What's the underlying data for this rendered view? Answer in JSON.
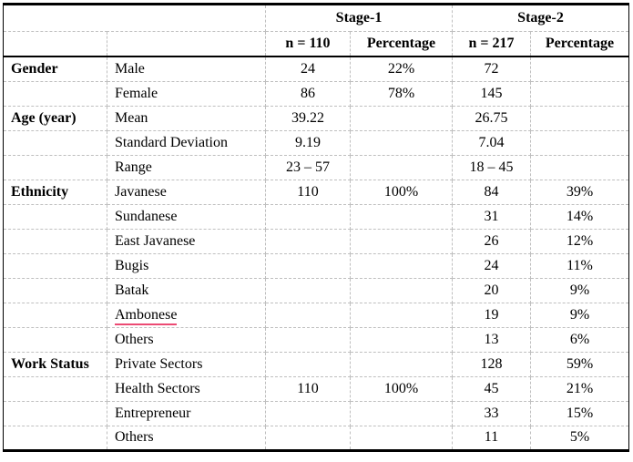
{
  "table": {
    "header": {
      "corner_blank": "",
      "stage1": "Stage-1",
      "stage2": "Stage-2",
      "blank_col1": "",
      "blank_col2": "",
      "stage1_n": "n = 110",
      "stage1_pct": "Percentage",
      "stage2_n": "n = 217",
      "stage2_pct": "Percentage"
    },
    "rows": [
      {
        "category": "Gender",
        "label": "Male",
        "stage1_n": "24",
        "stage1_pct": "22%",
        "stage2_n": "72",
        "stage2_pct": ""
      },
      {
        "category": "",
        "label": "Female",
        "stage1_n": "86",
        "stage1_pct": "78%",
        "stage2_n": "145",
        "stage2_pct": ""
      },
      {
        "category": "Age (year)",
        "label": "Mean",
        "stage1_n": "39.22",
        "stage1_pct": "",
        "stage2_n": "26.75",
        "stage2_pct": ""
      },
      {
        "category": "",
        "label": "Standard Deviation",
        "stage1_n": "9.19",
        "stage1_pct": "",
        "stage2_n": "7.04",
        "stage2_pct": ""
      },
      {
        "category": "",
        "label": "Range",
        "stage1_n": "23 – 57",
        "stage1_pct": "",
        "stage2_n": "18 – 45",
        "stage2_pct": ""
      },
      {
        "category": "Ethnicity",
        "label": "Javanese",
        "stage1_n": "110",
        "stage1_pct": "100%",
        "stage2_n": "84",
        "stage2_pct": "39%"
      },
      {
        "category": "",
        "label": "Sundanese",
        "stage1_n": "",
        "stage1_pct": "",
        "stage2_n": "31",
        "stage2_pct": "14%"
      },
      {
        "category": "",
        "label": "East Javanese",
        "stage1_n": "",
        "stage1_pct": "",
        "stage2_n": "26",
        "stage2_pct": "12%"
      },
      {
        "category": "",
        "label": "Bugis",
        "stage1_n": "",
        "stage1_pct": "",
        "stage2_n": "24",
        "stage2_pct": "11%"
      },
      {
        "category": "",
        "label": "Batak",
        "stage1_n": "",
        "stage1_pct": "",
        "stage2_n": "20",
        "stage2_pct": "9%"
      },
      {
        "category": "",
        "label": "Ambonese",
        "underlined": true,
        "stage1_n": "",
        "stage1_pct": "",
        "stage2_n": "19",
        "stage2_pct": "9%"
      },
      {
        "category": "",
        "label": "Others",
        "stage1_n": "",
        "stage1_pct": "",
        "stage2_n": "13",
        "stage2_pct": "6%"
      },
      {
        "category": "Work Status",
        "label": "Private Sectors",
        "stage1_n": "",
        "stage1_pct": "",
        "stage2_n": "128",
        "stage2_pct": "59%"
      },
      {
        "category": "",
        "label": "Health Sectors",
        "stage1_n": "110",
        "stage1_pct": "100%",
        "stage2_n": "45",
        "stage2_pct": "21%"
      },
      {
        "category": "",
        "label": "Entrepreneur",
        "stage1_n": "",
        "stage1_pct": "",
        "stage2_n": "33",
        "stage2_pct": "15%"
      },
      {
        "category": "",
        "label": "Others",
        "stage1_n": "",
        "stage1_pct": "",
        "stage2_n": "11",
        "stage2_pct": "5%"
      }
    ]
  },
  "colors": {
    "frame_border": "#000000",
    "grid_dashed": "#bfbfbf",
    "text": "#000000",
    "spellcheck_underline": "#ec4a73"
  }
}
